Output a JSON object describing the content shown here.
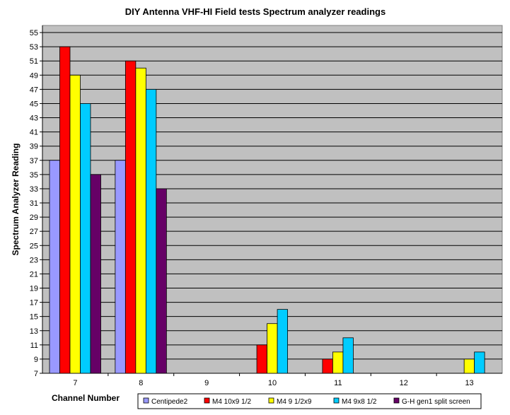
{
  "chart_data": {
    "type": "bar",
    "title": "DIY Antenna VHF-HI Field tests Spectrum analyzer readings",
    "xlabel": "Channel Number",
    "ylabel": "Spectrum Analyzer Reading",
    "ylim": [
      7,
      56
    ],
    "yticks": [
      7,
      9,
      11,
      13,
      15,
      17,
      19,
      21,
      23,
      25,
      27,
      29,
      31,
      33,
      35,
      37,
      39,
      41,
      43,
      45,
      47,
      49,
      51,
      53,
      55
    ],
    "grid": true,
    "legend_position": "bottom-right",
    "categories": [
      "7",
      "8",
      "9",
      "10",
      "11",
      "12",
      "13"
    ],
    "series": [
      {
        "name": "Centipede2",
        "color": "#9999ff",
        "values": [
          37,
          37,
          null,
          null,
          null,
          null,
          null
        ]
      },
      {
        "name": "M4 10x9 1/2",
        "color": "#ff0000",
        "values": [
          53,
          51,
          null,
          11,
          9,
          null,
          null
        ]
      },
      {
        "name": "M4 9 1/2x9",
        "color": "#ffff00",
        "values": [
          49,
          50,
          null,
          14,
          10,
          null,
          9
        ]
      },
      {
        "name": "M4 9x8 1/2",
        "color": "#00ccff",
        "values": [
          45,
          47,
          null,
          16,
          12,
          null,
          10
        ]
      },
      {
        "name": "G-H gen1 split screen",
        "color": "#660066",
        "values": [
          35,
          33,
          null,
          null,
          null,
          null,
          null
        ]
      }
    ],
    "plot_background": "#c0c0c0"
  }
}
